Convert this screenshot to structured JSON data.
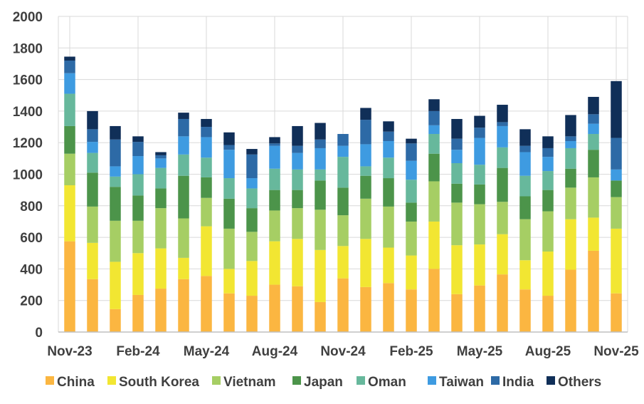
{
  "chart_data": {
    "type": "bar",
    "stacked": true,
    "title": "",
    "xlabel": "",
    "ylabel": "",
    "ylim": [
      0,
      2000
    ],
    "yticks": [
      0,
      200,
      400,
      600,
      800,
      1000,
      1200,
      1400,
      1600,
      1800,
      2000
    ],
    "grid": true,
    "legend_position": "bottom",
    "categories": [
      "Nov-23",
      "Dec-23",
      "Jan-24",
      "Feb-24",
      "Mar-24",
      "Apr-24",
      "May-24",
      "Jun-24",
      "Jul-24",
      "Aug-24",
      "Sep-24",
      "Oct-24",
      "Nov-24",
      "Dec-24",
      "Jan-25",
      "Feb-25",
      "Mar-25",
      "Apr-25",
      "May-25",
      "Jun-25",
      "Jul-25",
      "Aug-25",
      "Sep-25",
      "Oct-25",
      "Nov-25"
    ],
    "xtick_labels": [
      "Nov-23",
      "Feb-24",
      "May-24",
      "Aug-24",
      "Nov-24",
      "Feb-25",
      "May-25",
      "Aug-25",
      "Nov-25"
    ],
    "series": [
      {
        "name": "China",
        "color": "#FBB641",
        "values": [
          575,
          335,
          145,
          235,
          275,
          335,
          355,
          245,
          230,
          300,
          290,
          190,
          340,
          285,
          310,
          270,
          400,
          240,
          295,
          365,
          270,
          230,
          395,
          515,
          245
        ]
      },
      {
        "name": "South Korea",
        "color": "#F2E632",
        "values": [
          355,
          230,
          300,
          265,
          255,
          135,
          315,
          155,
          220,
          275,
          300,
          330,
          205,
          305,
          225,
          215,
          300,
          310,
          260,
          255,
          185,
          280,
          320,
          210,
          410
        ]
      },
      {
        "name": "Vietnam",
        "color": "#A6CE64",
        "values": [
          200,
          230,
          260,
          205,
          255,
          250,
          180,
          255,
          185,
          195,
          195,
          255,
          195,
          255,
          260,
          215,
          255,
          270,
          255,
          205,
          260,
          255,
          200,
          255,
          200
        ]
      },
      {
        "name": "Japan",
        "color": "#4C944A",
        "values": [
          175,
          215,
          215,
          160,
          125,
          270,
          130,
          190,
          150,
          130,
          115,
          185,
          175,
          145,
          180,
          120,
          175,
          120,
          125,
          215,
          145,
          135,
          120,
          175,
          105
        ]
      },
      {
        "name": "Oman",
        "color": "#67B89C",
        "values": [
          205,
          125,
          65,
          135,
          130,
          135,
          125,
          130,
          125,
          135,
          130,
          70,
          195,
          60,
          130,
          145,
          125,
          130,
          125,
          130,
          130,
          120,
          130,
          100,
          0
        ]
      },
      {
        "name": "Taiwan",
        "color": "#3E9BE1",
        "values": [
          130,
          70,
          65,
          115,
          60,
          115,
          130,
          180,
          65,
          145,
          105,
          135,
          70,
          140,
          105,
          120,
          55,
          85,
          170,
          135,
          150,
          90,
          45,
          65,
          70
        ]
      },
      {
        "name": "India",
        "color": "#2D6AA6",
        "values": [
          80,
          80,
          170,
          90,
          20,
          110,
          65,
          30,
          150,
          15,
          45,
          55,
          75,
          155,
          60,
          110,
          90,
          70,
          65,
          25,
          40,
          55,
          30,
          60,
          200
        ]
      },
      {
        "name": "Others",
        "color": "#102F58",
        "values": [
          25,
          115,
          85,
          35,
          20,
          40,
          50,
          80,
          35,
          40,
          125,
          105,
          0,
          75,
          65,
          30,
          75,
          125,
          75,
          110,
          105,
          75,
          135,
          110,
          360
        ]
      }
    ]
  }
}
